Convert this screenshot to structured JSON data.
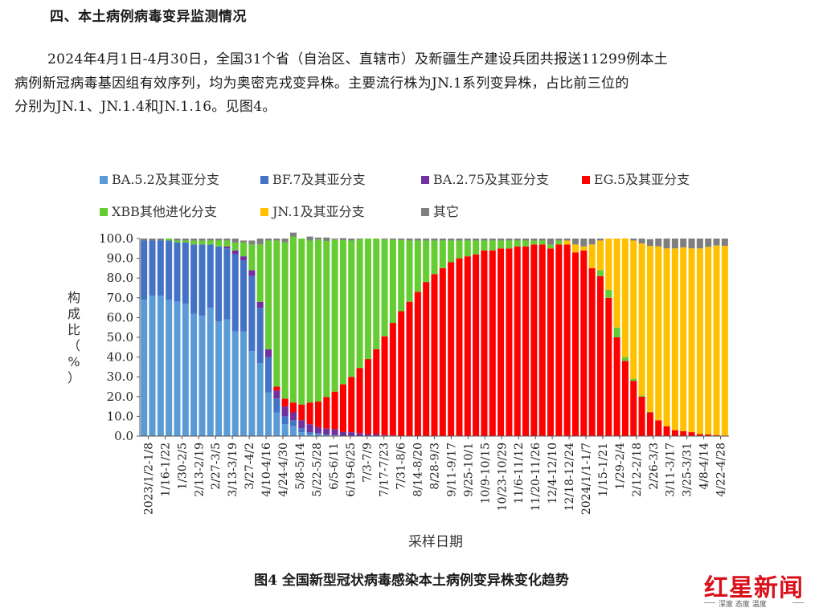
{
  "document": {
    "section_heading": "四、本土病例病毒变异监测情况",
    "paragraph_line1": "2024年4月1日-4月30日，全国31个省（自治区、直辖市）及新疆生产建设兵团共报送11299例本土",
    "paragraph_line2": "病例新冠病毒基因组有效序列，均为奥密克戎变异株。主要流行株为JN.1系列变异株，占比前三位的",
    "paragraph_line3": "分别为JN.1、JN.1.4和JN.1.16。见图4。",
    "figure_caption": "图4 全国新型冠状病毒感染本土病例变异株变化趋势"
  },
  "logo": {
    "text": "红星新闻",
    "sub": "深度 态度 温度",
    "color": "#d9111b"
  },
  "chart_data": {
    "type": "bar",
    "stacked": true,
    "percent": true,
    "xlabel": "采样日期",
    "ylabel": "构成比（%）",
    "ylim": [
      0,
      100
    ],
    "yticks": [
      "0.0",
      "10.0",
      "20.0",
      "30.0",
      "40.0",
      "50.0",
      "60.0",
      "70.0",
      "80.0",
      "90.0",
      "100.0"
    ],
    "grid": false,
    "legend_position": "top",
    "x_tick_labels": [
      "2023/1/2-1/8",
      "1/16-1/22",
      "1/30-2/5",
      "2/13-2/19",
      "2/27-3/5",
      "3/13-3/19",
      "3/27-4/2",
      "4/10-4/16",
      "4/24-4/30",
      "5/8-5/14",
      "5/22-5/28",
      "6/5-6/11",
      "6/19-6/25",
      "7/3-7/9",
      "7/17-7/23",
      "7/31-8/6",
      "8/14-8/20",
      "8/28-9/3",
      "9/11-9/17",
      "9/25-10/1",
      "10/9-10/15",
      "10/23-10/29",
      "11/6-11/12",
      "11/20-11/26",
      "12/4-12/10",
      "12/18-12/24",
      "2024/1/1-1/7",
      "1/15-1/21",
      "1/29-2/4",
      "2/12-2/18",
      "2/26-3/3",
      "3/11-3/17",
      "3/25-3/31",
      "4/8-4/14",
      "4/22-4/28"
    ],
    "series": [
      {
        "name": "BA.5.2及其亚分支",
        "color": "#5b9bd5",
        "values": [
          69,
          71,
          71,
          69,
          68,
          67,
          62,
          61,
          65,
          58,
          59,
          53,
          53,
          43,
          37,
          22,
          12,
          6,
          5,
          2,
          1,
          1,
          0.5,
          0.3,
          0.2,
          0,
          0,
          0,
          0,
          0,
          0,
          0,
          0,
          0,
          0,
          0,
          0,
          0,
          0,
          0,
          0,
          0,
          0,
          0,
          0,
          0,
          0,
          0,
          0,
          0,
          0,
          0,
          0,
          0,
          0,
          0,
          0,
          0,
          0,
          0,
          0,
          0,
          0,
          0,
          0,
          0,
          0,
          0,
          0,
          0,
          0
        ]
      },
      {
        "name": "BF.7及其亚分支",
        "color": "#4472c4",
        "values": [
          30,
          28,
          28,
          30,
          30,
          31,
          35,
          36,
          32,
          38,
          36,
          39,
          36,
          38,
          28,
          18,
          7,
          4,
          3,
          2,
          1,
          0.5,
          0.3,
          0.2,
          0,
          0,
          0,
          0,
          0,
          0,
          0,
          0,
          0,
          0,
          0,
          0,
          0,
          0,
          0,
          0,
          0,
          0,
          0,
          0,
          0,
          0,
          0,
          0,
          0,
          0,
          0,
          0,
          0,
          0,
          0,
          0,
          0,
          0,
          0,
          0,
          0,
          0,
          0,
          0,
          0,
          0,
          0,
          0,
          0,
          0,
          0
        ]
      },
      {
        "name": "BA.2.75及其亚分支",
        "color": "#7030a0",
        "values": [
          0,
          0,
          0,
          0,
          0,
          0,
          0,
          0,
          0,
          0,
          1,
          2,
          2,
          3,
          3,
          4,
          4,
          5,
          4,
          4,
          4,
          3,
          3,
          3,
          2,
          2,
          1.5,
          1,
          1,
          0.5,
          0.3,
          0.2,
          0,
          0,
          0,
          0,
          0,
          0,
          0,
          0,
          0,
          0,
          0,
          0,
          0,
          0,
          0,
          0,
          0,
          0,
          0,
          0,
          0,
          0,
          0,
          0,
          0,
          0,
          0,
          0,
          0,
          0,
          0,
          0,
          0,
          0,
          0,
          0,
          0,
          0,
          0
        ]
      },
      {
        "name": "EG.5及其亚分支",
        "color": "#ff0000",
        "values": [
          0,
          0,
          0,
          0,
          0,
          0,
          0,
          0,
          0,
          0,
          0,
          0,
          0,
          0,
          0,
          0,
          2,
          4,
          5,
          8,
          11,
          13,
          16,
          19,
          24,
          28,
          33,
          38,
          43,
          50,
          57,
          63,
          68,
          73,
          78,
          82,
          85,
          88,
          90,
          91,
          92,
          94,
          94,
          95,
          95,
          96,
          96,
          97,
          97,
          95,
          97,
          97,
          93,
          94,
          85,
          81,
          70,
          50,
          38,
          28,
          20,
          12,
          8,
          5,
          3,
          2.5,
          2,
          1,
          0.8,
          0.5,
          0.3
        ]
      },
      {
        "name": "XBB其他进化分支",
        "color": "#66cc33",
        "values": [
          0,
          0,
          0,
          1,
          1,
          1,
          2,
          2,
          2,
          3,
          3,
          4,
          7,
          13,
          29,
          55,
          74,
          79,
          84,
          84,
          82,
          82,
          79,
          77,
          73,
          69,
          65,
          61,
          56,
          49,
          42,
          36,
          31,
          26,
          21,
          17,
          14,
          11,
          9,
          8,
          7,
          5,
          5,
          4,
          4,
          3,
          3,
          2,
          2,
          2,
          2,
          0,
          0,
          0,
          0,
          3,
          4,
          5,
          2,
          1,
          0.5,
          0.3,
          0,
          0,
          0,
          0,
          0,
          0,
          0,
          0,
          0
        ]
      },
      {
        "name": "JN.1及其亚分支",
        "color": "#ffc000",
        "values": [
          0,
          0,
          0,
          0,
          0,
          0,
          0,
          0,
          0,
          0,
          0,
          0,
          0,
          0,
          0,
          0,
          0,
          0,
          0,
          0,
          0,
          0,
          0,
          0,
          0,
          0,
          0,
          0,
          0,
          0,
          0,
          0,
          0,
          0,
          0,
          0,
          0,
          0,
          0,
          0,
          0,
          0,
          0,
          0,
          0,
          0,
          0,
          0,
          0,
          0,
          0,
          2,
          4,
          2,
          12,
          15,
          26,
          45,
          60,
          70,
          77,
          84,
          88,
          90,
          92,
          93,
          93,
          94,
          95,
          96,
          96
        ]
      },
      {
        "name": "其它",
        "color": "#7f7f7f",
        "values": [
          1,
          1,
          1,
          0,
          1,
          1,
          1,
          1,
          1,
          1,
          1,
          2,
          1,
          2,
          3,
          1,
          1,
          2,
          2,
          0,
          2,
          1,
          1.7,
          0.5,
          1,
          1,
          0.5,
          0,
          0,
          0.5,
          0.7,
          0.8,
          1,
          1,
          1,
          1,
          1,
          1,
          1,
          1,
          1,
          1,
          1,
          1,
          1,
          1,
          1,
          1,
          1,
          3,
          1,
          1,
          3,
          4,
          3,
          1,
          0,
          0,
          0,
          1,
          2.5,
          3.4,
          4,
          5,
          5,
          4.5,
          5,
          5,
          4.2,
          3.5,
          3.7
        ]
      }
    ]
  }
}
